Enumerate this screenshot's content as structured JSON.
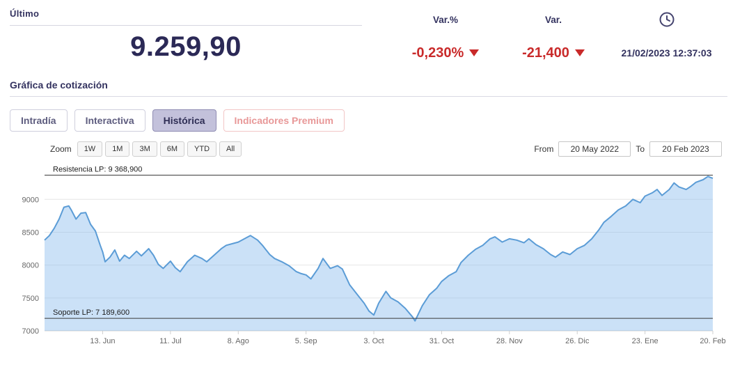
{
  "header": {
    "ultimo_label": "Último",
    "price": "9.259,90",
    "var_pct_label": "Var.%",
    "var_pct_value": "-0,230%",
    "var_label": "Var.",
    "var_value": "-21,400",
    "timestamp": "21/02/2023 12:37:03"
  },
  "theme": {
    "navy": "#33325f",
    "price_navy": "#2b2956",
    "negative_red": "#c92a2a",
    "tab_active_bg": "#c3c1db",
    "premium_pink": "#e89898"
  },
  "section": {
    "title": "Gráfica de cotización"
  },
  "tabs": [
    {
      "label": "Intradía",
      "active": false
    },
    {
      "label": "Interactiva",
      "active": false
    },
    {
      "label": "Histórica",
      "active": true
    },
    {
      "label": "Indicadores Premium",
      "active": false
    }
  ],
  "range_selector": {
    "zoom_label": "Zoom",
    "buttons": [
      "1W",
      "1M",
      "3M",
      "6M",
      "YTD",
      "All"
    ],
    "from_label": "From",
    "from_value": "20 May 2022",
    "to_label": "To",
    "to_value": "20 Feb 2023"
  },
  "chart_data": {
    "type": "area",
    "title": "",
    "xlabel": "",
    "ylabel": "",
    "ylim": [
      7000,
      9480
    ],
    "yticks": [
      7000,
      7500,
      8000,
      8500,
      9000
    ],
    "x_range_days": [
      0,
      276
    ],
    "xticks": [
      {
        "d": 24,
        "label": "13. Jun"
      },
      {
        "d": 52,
        "label": "11. Jul"
      },
      {
        "d": 80,
        "label": "8. Ago"
      },
      {
        "d": 108,
        "label": "5. Sep"
      },
      {
        "d": 136,
        "label": "3. Oct"
      },
      {
        "d": 164,
        "label": "31. Oct"
      },
      {
        "d": 192,
        "label": "28. Nov"
      },
      {
        "d": 220,
        "label": "26. Dic"
      },
      {
        "d": 248,
        "label": "23. Ene"
      },
      {
        "d": 276,
        "label": "20. Feb"
      }
    ],
    "annotations": [
      {
        "label": "Resistencia LP: 9 368,900",
        "value": 9368.9
      },
      {
        "label": "Soporte LP: 7 189,600",
        "value": 7189.6
      }
    ],
    "line_color": "#5b9cd6",
    "fill_color": "rgba(124,181,236,0.40)",
    "grid_color": "#e6e6e6",
    "series": [
      {
        "name": "Cotización",
        "points": [
          [
            0,
            8380
          ],
          [
            2,
            8450
          ],
          [
            4,
            8560
          ],
          [
            6,
            8700
          ],
          [
            8,
            8880
          ],
          [
            10,
            8900
          ],
          [
            11,
            8840
          ],
          [
            13,
            8700
          ],
          [
            15,
            8790
          ],
          [
            17,
            8800
          ],
          [
            19,
            8620
          ],
          [
            21,
            8520
          ],
          [
            23,
            8300
          ],
          [
            24,
            8200
          ],
          [
            25,
            8050
          ],
          [
            27,
            8120
          ],
          [
            29,
            8230
          ],
          [
            31,
            8060
          ],
          [
            33,
            8150
          ],
          [
            35,
            8100
          ],
          [
            38,
            8210
          ],
          [
            40,
            8140
          ],
          [
            43,
            8250
          ],
          [
            45,
            8150
          ],
          [
            47,
            8010
          ],
          [
            49,
            7950
          ],
          [
            52,
            8060
          ],
          [
            54,
            7960
          ],
          [
            56,
            7900
          ],
          [
            59,
            8050
          ],
          [
            62,
            8150
          ],
          [
            65,
            8100
          ],
          [
            67,
            8050
          ],
          [
            70,
            8150
          ],
          [
            73,
            8250
          ],
          [
            75,
            8300
          ],
          [
            78,
            8330
          ],
          [
            80,
            8350
          ],
          [
            83,
            8410
          ],
          [
            85,
            8450
          ],
          [
            88,
            8380
          ],
          [
            90,
            8300
          ],
          [
            93,
            8160
          ],
          [
            95,
            8100
          ],
          [
            98,
            8050
          ],
          [
            101,
            7990
          ],
          [
            104,
            7900
          ],
          [
            106,
            7870
          ],
          [
            108,
            7850
          ],
          [
            110,
            7790
          ],
          [
            113,
            7950
          ],
          [
            115,
            8100
          ],
          [
            118,
            7950
          ],
          [
            121,
            7990
          ],
          [
            123,
            7940
          ],
          [
            126,
            7700
          ],
          [
            129,
            7560
          ],
          [
            132,
            7420
          ],
          [
            134,
            7300
          ],
          [
            136,
            7240
          ],
          [
            138,
            7420
          ],
          [
            141,
            7600
          ],
          [
            143,
            7500
          ],
          [
            146,
            7440
          ],
          [
            149,
            7340
          ],
          [
            152,
            7210
          ],
          [
            153,
            7150
          ],
          [
            156,
            7380
          ],
          [
            159,
            7550
          ],
          [
            162,
            7650
          ],
          [
            164,
            7750
          ],
          [
            167,
            7840
          ],
          [
            170,
            7900
          ],
          [
            172,
            8040
          ],
          [
            175,
            8150
          ],
          [
            178,
            8240
          ],
          [
            181,
            8300
          ],
          [
            184,
            8400
          ],
          [
            186,
            8430
          ],
          [
            189,
            8350
          ],
          [
            192,
            8400
          ],
          [
            195,
            8380
          ],
          [
            198,
            8340
          ],
          [
            200,
            8400
          ],
          [
            203,
            8310
          ],
          [
            206,
            8250
          ],
          [
            209,
            8160
          ],
          [
            211,
            8120
          ],
          [
            214,
            8200
          ],
          [
            217,
            8160
          ],
          [
            220,
            8250
          ],
          [
            223,
            8300
          ],
          [
            226,
            8400
          ],
          [
            229,
            8540
          ],
          [
            231,
            8650
          ],
          [
            234,
            8740
          ],
          [
            237,
            8840
          ],
          [
            240,
            8900
          ],
          [
            243,
            9000
          ],
          [
            246,
            8950
          ],
          [
            248,
            9050
          ],
          [
            251,
            9100
          ],
          [
            253,
            9150
          ],
          [
            255,
            9060
          ],
          [
            258,
            9150
          ],
          [
            260,
            9250
          ],
          [
            262,
            9190
          ],
          [
            265,
            9150
          ],
          [
            267,
            9200
          ],
          [
            269,
            9260
          ],
          [
            272,
            9300
          ],
          [
            274,
            9350
          ],
          [
            276,
            9320
          ]
        ]
      }
    ]
  }
}
